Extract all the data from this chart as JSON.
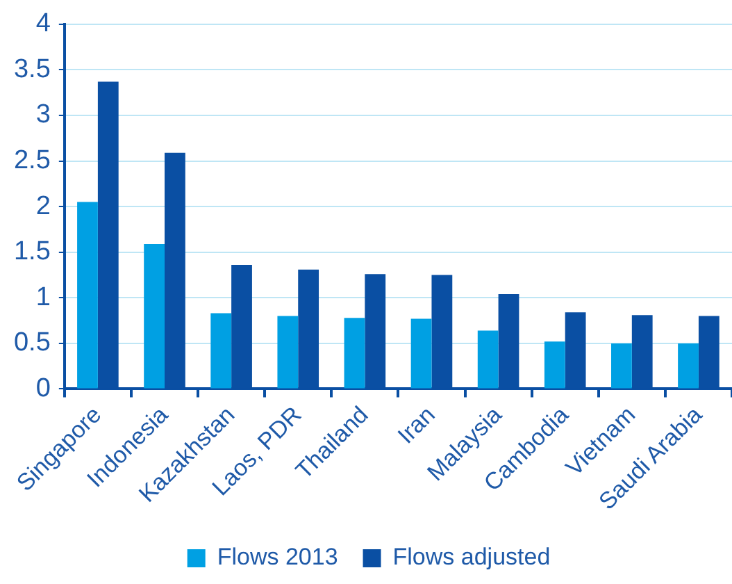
{
  "chart_data": {
    "type": "bar",
    "categories": [
      "Singapore",
      "Indonesia",
      "Kazakhstan",
      "Laos, PDR",
      "Thailand",
      "Iran",
      "Malaysia",
      "Cambodia",
      "Vietnam",
      "Saudi Arabia"
    ],
    "series": [
      {
        "name": "Flows 2013",
        "color": "#00a0e3",
        "values": [
          2.05,
          1.59,
          0.83,
          0.8,
          0.78,
          0.77,
          0.64,
          0.52,
          0.5,
          0.5
        ]
      },
      {
        "name": "Flows adjusted",
        "color": "#0a4fa3",
        "values": [
          3.37,
          2.59,
          1.36,
          1.31,
          1.26,
          1.25,
          1.04,
          0.84,
          0.81,
          0.8
        ]
      }
    ],
    "ylim": [
      0,
      4
    ],
    "yticks": [
      0,
      0.5,
      1,
      1.5,
      2,
      2.5,
      3,
      3.5,
      4
    ],
    "grid": "y",
    "legend": "bottom"
  }
}
